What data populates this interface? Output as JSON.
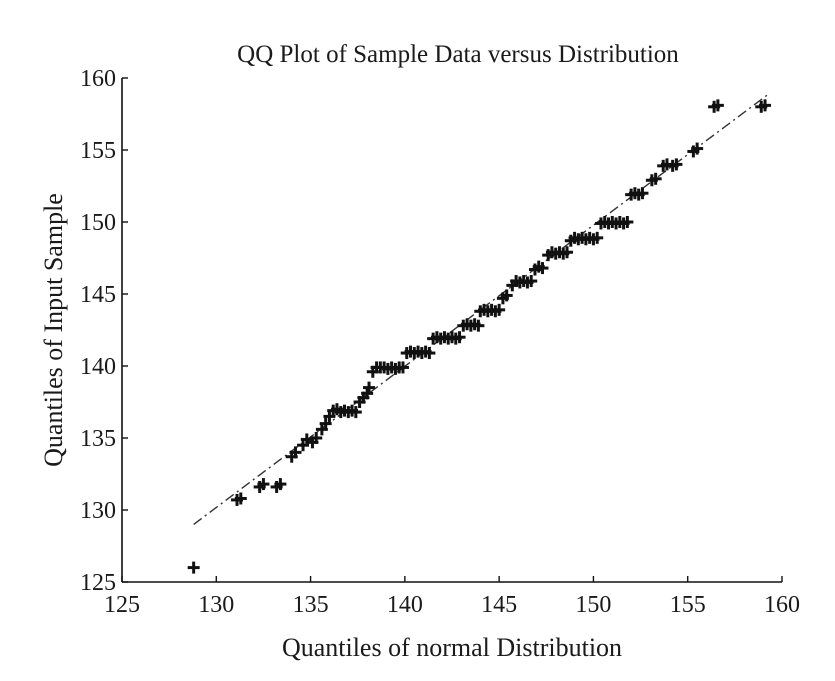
{
  "chart_data": {
    "type": "scatter",
    "title": "QQ Plot of Sample Data versus Distribution",
    "xlabel": "Quantiles of normal Distribution",
    "ylabel": "Quantiles of Input Sample",
    "xlim": [
      125,
      160
    ],
    "ylim": [
      125,
      160
    ],
    "xticks": [
      125,
      130,
      135,
      140,
      145,
      150,
      155,
      160
    ],
    "yticks": [
      125,
      130,
      135,
      140,
      145,
      150,
      155,
      160
    ],
    "grid": false,
    "marker": "+",
    "color": "#111111",
    "reference_line": {
      "style": "dash-dot",
      "x": [
        128.8,
        159.2
      ],
      "y": [
        129.0,
        158.8
      ]
    },
    "series": [
      {
        "points": [
          [
            128.8,
            126
          ],
          [
            131.1,
            130.7
          ],
          [
            131.3,
            130.8
          ],
          [
            132.3,
            131.6
          ],
          [
            132.5,
            131.8
          ],
          [
            133.2,
            131.6
          ],
          [
            133.4,
            131.8
          ],
          [
            134.0,
            133.7
          ],
          [
            134.2,
            134.0
          ],
          [
            134.6,
            134.5
          ],
          [
            134.8,
            134.9
          ],
          [
            135.1,
            134.7
          ],
          [
            135.3,
            135.0
          ],
          [
            135.6,
            135.6
          ],
          [
            135.8,
            136.0
          ],
          [
            136.0,
            136.5
          ],
          [
            136.2,
            136.9
          ],
          [
            136.4,
            137.0
          ],
          [
            136.6,
            136.8
          ],
          [
            136.8,
            136.9
          ],
          [
            137.0,
            136.8
          ],
          [
            137.2,
            136.9
          ],
          [
            137.4,
            136.8
          ],
          [
            137.6,
            137.5
          ],
          [
            137.8,
            137.8
          ],
          [
            138.0,
            138.1
          ],
          [
            138.1,
            138.5
          ],
          [
            138.3,
            139.6
          ],
          [
            138.5,
            139.9
          ],
          [
            138.7,
            139.9
          ],
          [
            138.9,
            139.9
          ],
          [
            139.1,
            139.8
          ],
          [
            139.3,
            139.9
          ],
          [
            139.5,
            139.8
          ],
          [
            139.7,
            139.9
          ],
          [
            139.9,
            139.9
          ],
          [
            140.1,
            140.9
          ],
          [
            140.3,
            141.0
          ],
          [
            140.5,
            140.9
          ],
          [
            140.7,
            141.0
          ],
          [
            140.9,
            140.9
          ],
          [
            141.1,
            141.0
          ],
          [
            141.3,
            140.9
          ],
          [
            141.5,
            141.9
          ],
          [
            141.7,
            142.0
          ],
          [
            141.9,
            141.9
          ],
          [
            142.1,
            142.0
          ],
          [
            142.3,
            141.9
          ],
          [
            142.5,
            142.0
          ],
          [
            142.7,
            141.9
          ],
          [
            142.9,
            142.0
          ],
          [
            143.1,
            142.8
          ],
          [
            143.3,
            142.9
          ],
          [
            143.5,
            142.8
          ],
          [
            143.7,
            142.9
          ],
          [
            143.9,
            142.8
          ],
          [
            144.0,
            143.8
          ],
          [
            144.2,
            143.9
          ],
          [
            144.4,
            143.8
          ],
          [
            144.6,
            143.9
          ],
          [
            144.8,
            143.8
          ],
          [
            145.0,
            143.9
          ],
          [
            145.2,
            144.7
          ],
          [
            145.4,
            144.9
          ],
          [
            145.7,
            145.6
          ],
          [
            145.9,
            145.9
          ],
          [
            146.1,
            145.8
          ],
          [
            146.3,
            145.9
          ],
          [
            146.5,
            145.8
          ],
          [
            146.7,
            145.9
          ],
          [
            146.9,
            146.7
          ],
          [
            147.1,
            146.9
          ],
          [
            147.3,
            146.8
          ],
          [
            147.6,
            147.7
          ],
          [
            147.8,
            147.9
          ],
          [
            148.0,
            147.8
          ],
          [
            148.2,
            147.9
          ],
          [
            148.4,
            147.8
          ],
          [
            148.6,
            147.9
          ],
          [
            148.8,
            148.7
          ],
          [
            149.0,
            148.9
          ],
          [
            149.2,
            148.8
          ],
          [
            149.4,
            148.9
          ],
          [
            149.6,
            148.8
          ],
          [
            149.8,
            148.9
          ],
          [
            150.0,
            148.8
          ],
          [
            150.2,
            148.9
          ],
          [
            150.4,
            149.9
          ],
          [
            150.6,
            150.0
          ],
          [
            150.8,
            149.9
          ],
          [
            151.0,
            150.0
          ],
          [
            151.2,
            149.9
          ],
          [
            151.4,
            150.0
          ],
          [
            151.6,
            149.9
          ],
          [
            151.8,
            150.0
          ],
          [
            152.0,
            151.9
          ],
          [
            152.2,
            152.0
          ],
          [
            152.4,
            151.9
          ],
          [
            152.6,
            152.0
          ],
          [
            153.1,
            152.9
          ],
          [
            153.3,
            153.0
          ],
          [
            153.7,
            153.9
          ],
          [
            153.9,
            154.0
          ],
          [
            154.2,
            153.9
          ],
          [
            154.4,
            154.0
          ],
          [
            155.3,
            154.9
          ],
          [
            155.5,
            155.1
          ],
          [
            156.4,
            158.0
          ],
          [
            156.6,
            158.1
          ],
          [
            158.9,
            158.0
          ],
          [
            159.1,
            158.1
          ]
        ]
      }
    ]
  }
}
